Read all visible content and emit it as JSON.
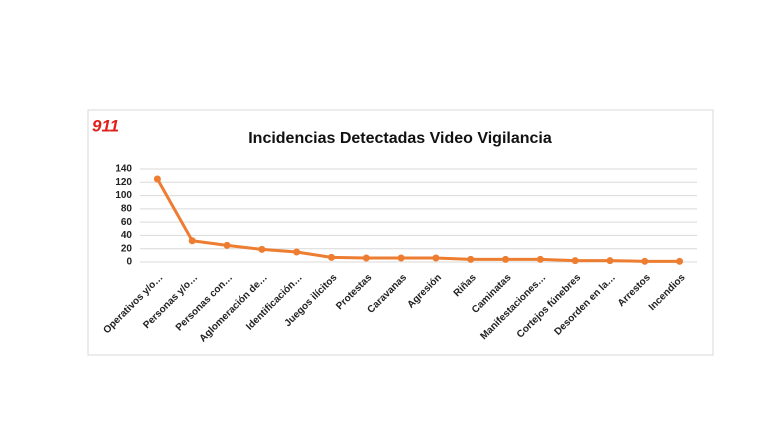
{
  "logo": "911",
  "chart_data": {
    "type": "line",
    "title": "Incidencias Detectadas Video Vigilancia",
    "categories": [
      "Operativos y/o…",
      "Personas y/o…",
      "Personas con…",
      "Aglomeración de…",
      "Identificación…",
      "Juegos ilícitos",
      "Protestas",
      "Caravanas",
      "Agresión",
      "Riñas",
      "Caminatas",
      "Manifestaciones…",
      "Cortejos fúnebres",
      "Desorden en la…",
      "Arrestos",
      "Incendios"
    ],
    "values": [
      125,
      32,
      25,
      19,
      15,
      7,
      6,
      6,
      6,
      4,
      4,
      4,
      2,
      2,
      1,
      1
    ],
    "color": "#ed7d31",
    "ylim": [
      0,
      140
    ],
    "yticks": [
      0,
      20,
      40,
      60,
      80,
      100,
      120,
      140
    ],
    "grid": true
  }
}
